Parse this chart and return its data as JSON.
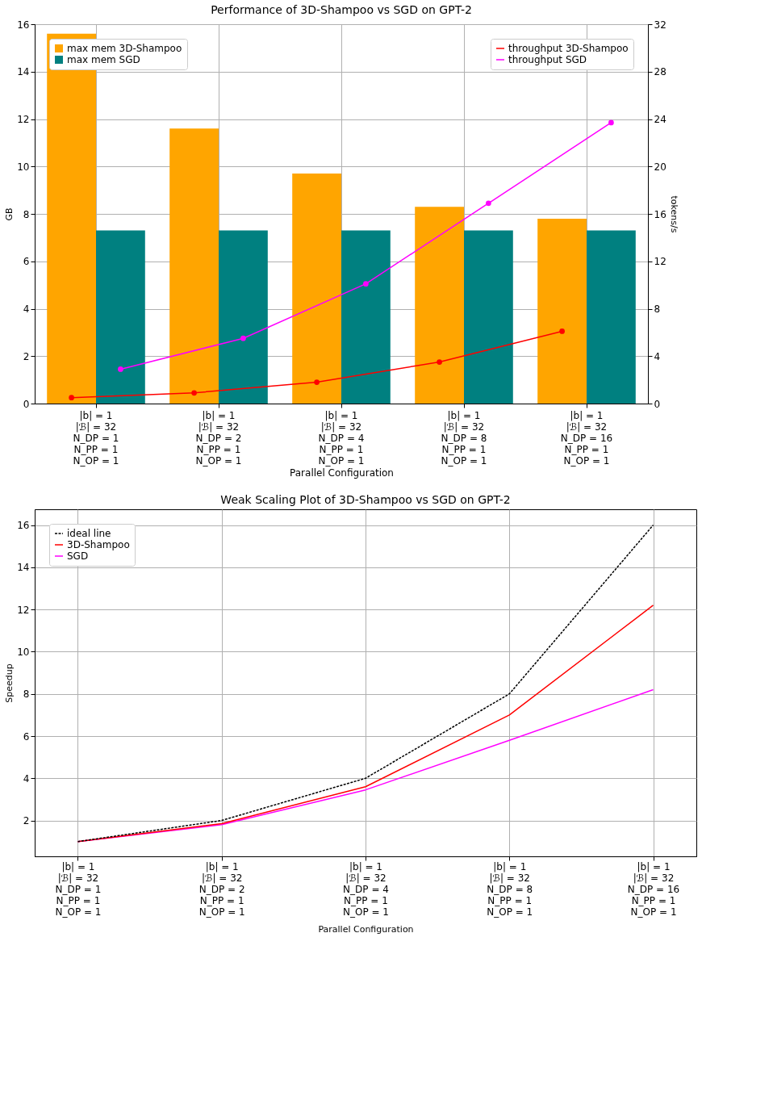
{
  "chart_data": [
    {
      "type": "bar",
      "title": "Performance of 3D-Shampoo vs SGD on GPT-2",
      "xlabel": "Parallel Configuration",
      "ylabel": "GB",
      "y2label": "tokens/s",
      "categories": [
        "|b| = 1\n|ℬ| = 32\nN_DP = 1\nN_PP = 1\nN_OP = 1",
        "|b| = 1\n|ℬ| = 32\nN_DP = 2\nN_PP = 1\nN_OP = 1",
        "|b| = 1\n|ℬ| = 32\nN_DP = 4\nN_PP = 1\nN_OP = 1",
        "|b| = 1\n|ℬ| = 32\nN_DP = 8\nN_PP = 1\nN_OP = 1",
        "|b| = 1\n|ℬ| = 32\nN_DP = 16\nN_PP = 1\nN_OP = 1"
      ],
      "series": [
        {
          "name": "max mem 3D-Shampoo",
          "type": "bar",
          "color": "#ffa500",
          "values": [
            15.6,
            11.6,
            9.7,
            8.3,
            7.8
          ]
        },
        {
          "name": "max mem SGD",
          "type": "bar",
          "color": "#008080",
          "values": [
            7.3,
            7.3,
            7.3,
            7.3,
            7.3
          ]
        },
        {
          "name": "throughput 3D-Shampoo",
          "type": "line",
          "axis": "y2",
          "color": "#ff0000",
          "values": [
            0.5,
            0.9,
            1.8,
            3.5,
            6.1
          ]
        },
        {
          "name": "throughput SGD",
          "type": "line",
          "axis": "y2",
          "color": "#ff00ff",
          "values": [
            2.9,
            5.5,
            10.1,
            16.9,
            23.7
          ]
        }
      ],
      "ylim": [
        0,
        16
      ],
      "yticks": [
        0,
        2,
        4,
        6,
        8,
        10,
        12,
        14,
        16
      ],
      "y2lim": [
        0,
        32
      ],
      "y2ticks": [
        0,
        4,
        8,
        12,
        16,
        20,
        24,
        28,
        32
      ],
      "grid": true,
      "legend": "top left",
      "marker": "circle"
    },
    {
      "type": "line",
      "title": "Weak Scaling Plot of 3D-Shampoo vs SGD on GPT-2",
      "xlabel": "Parallel Configuration",
      "ylabel": "Speedup",
      "categories": [
        "|b| = 1\n|ℬ| = 32\nN_DP = 1\nN_PP = 1\nN_OP = 1",
        "|b| = 1\n|ℬ| = 32\nN_DP = 2\nN_PP = 1\nN_OP = 1",
        "|b| = 1\n|ℬ| = 32\nN_DP = 4\nN_PP = 1\nN_OP = 1",
        "|b| = 1\n|ℬ| = 32\nN_DP = 8\nN_PP = 1\nN_OP = 1",
        "|b| = 1\n|ℬ| = 32\nN_DP = 16\nN_PP = 1\nN_OP = 1"
      ],
      "series": [
        {
          "name": "ideal line",
          "color": "#000000",
          "line_style": "dashed",
          "values": [
            1,
            2,
            4,
            8,
            16
          ]
        },
        {
          "name": "3D-Shampoo",
          "color": "#ff0000",
          "line_style": "solid",
          "values": [
            1,
            1.85,
            3.6,
            7.0,
            12.2
          ]
        },
        {
          "name": "SGD",
          "color": "#ff00ff",
          "line_style": "solid",
          "values": [
            1,
            1.8,
            3.45,
            5.8,
            8.2
          ]
        }
      ],
      "ylim": [
        0.3,
        16.75
      ],
      "yticks": [
        2,
        4,
        6,
        8,
        10,
        12,
        14,
        16
      ],
      "grid": true,
      "legend": "top left",
      "marker": "none"
    }
  ]
}
